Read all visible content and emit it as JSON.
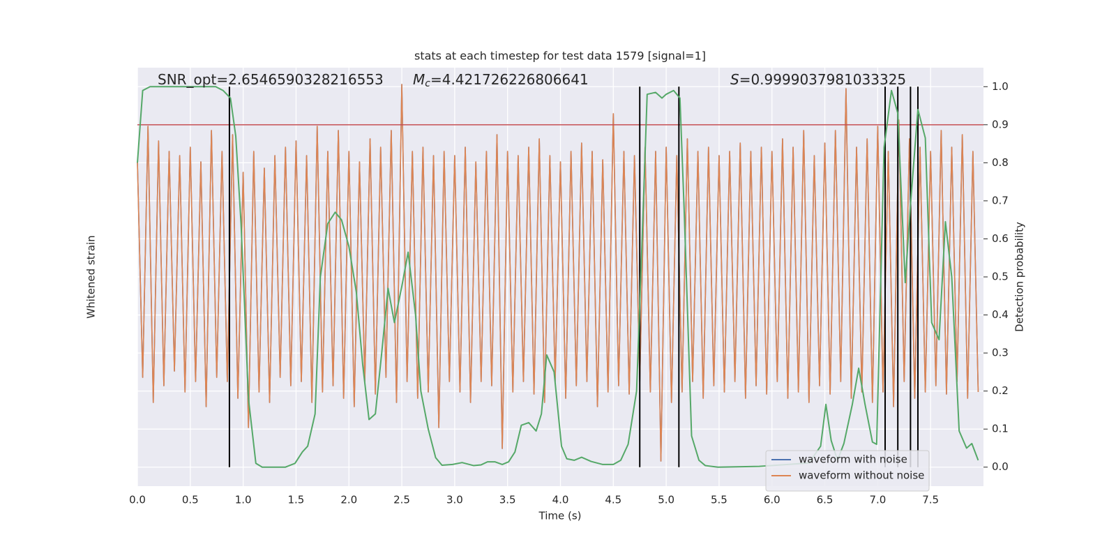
{
  "chart_data": {
    "type": "line",
    "title": "stats at each timestep for test data 1579 [signal=1]",
    "xlabel": "Time (s)",
    "ylabel": "Whitened strain",
    "y2label": "Detection probability",
    "annotations": [
      {
        "text": "SNR_opt=2.6546590328216553"
      },
      {
        "symbol": "M",
        "subscript": "c",
        "text": "=4.421726226806641"
      },
      {
        "symbol": "S",
        "text": "=0.9999037981033325"
      }
    ],
    "xlim": [
      0,
      8
    ],
    "xticks": [
      {
        "value": 0,
        "label": "0.0"
      },
      0.5,
      {
        "value": 1,
        "label": "1.0"
      },
      1.5,
      {
        "value": 2,
        "label": "2.0"
      },
      2.5,
      {
        "value": 3,
        "label": "3.0"
      },
      3.5,
      {
        "value": 4,
        "label": "4.0"
      },
      4.5,
      {
        "value": 5,
        "label": "5.0"
      },
      5.5,
      {
        "value": 6,
        "label": "6.0"
      },
      6.5,
      {
        "value": 7,
        "label": "7.0"
      },
      7.5
    ],
    "ylim": [
      -1,
      1
    ],
    "y2lim": [
      -0.05,
      1.05
    ],
    "y2ticks": [
      {
        "value": 0,
        "label": "0.0"
      },
      0.1,
      0.2,
      0.3,
      0.4,
      0.5,
      0.6,
      0.7,
      0.8,
      0.9,
      {
        "value": 1,
        "label": "1.0"
      }
    ],
    "grid": true,
    "legend": "lower right",
    "threshold": 0.9,
    "threshold_color": "#c44e52",
    "detections": [
      0.87,
      4.75,
      5.12,
      7.07,
      7.19,
      7.31,
      7.38
    ],
    "detection_color": "#000000",
    "series": [
      {
        "name": "waveform with noise",
        "color": "#4c72b0",
        "legend": true,
        "x": [
          0,
          0.05,
          0.1,
          0.15,
          0.2,
          0.25,
          0.3,
          0.35,
          0.4,
          0.45,
          0.5,
          0.55,
          0.6,
          0.65,
          0.7,
          0.75,
          0.8,
          0.85,
          0.9,
          0.95,
          1,
          1.05,
          1.1,
          1.15,
          1.2,
          1.25,
          1.3,
          1.35,
          1.4,
          1.45,
          1.5,
          1.55,
          1.6,
          1.65,
          1.7,
          1.75,
          1.8,
          1.85,
          1.9,
          1.95,
          2,
          2.05,
          2.1,
          2.15,
          2.2,
          2.25,
          2.3,
          2.35,
          2.4,
          2.45,
          2.5,
          2.55,
          2.6,
          2.65,
          2.7,
          2.75,
          2.8,
          2.85,
          2.9,
          2.95,
          3,
          3.05,
          3.1,
          3.15,
          3.2,
          3.25,
          3.3,
          3.35,
          3.4,
          3.45,
          3.5,
          3.55,
          3.6,
          3.65,
          3.7,
          3.75,
          3.8,
          3.85,
          3.9,
          3.95,
          4,
          4.05,
          4.1,
          4.15,
          4.2,
          4.25,
          4.3,
          4.35,
          4.4,
          4.45,
          4.5,
          4.55,
          4.6,
          4.65,
          4.7,
          4.75,
          4.8,
          4.85,
          4.9,
          4.95,
          5,
          5.05,
          5.1,
          5.15,
          5.2,
          5.25,
          5.3,
          5.35,
          5.4,
          5.45,
          5.5,
          5.55,
          5.6,
          5.65,
          5.7,
          5.75,
          5.8,
          5.85,
          5.9,
          5.95,
          6,
          6.05,
          6.1,
          6.15,
          6.2,
          6.25,
          6.3,
          6.35,
          6.4,
          6.45,
          6.5,
          6.55,
          6.6,
          6.65,
          6.7,
          6.75,
          6.8,
          6.85,
          6.9,
          6.95,
          7,
          7.05,
          7.1,
          7.15,
          7.2,
          7.25,
          7.3,
          7.35,
          7.4,
          7.45,
          7.5,
          7.55,
          7.6,
          7.65,
          7.7,
          7.75,
          7.8,
          7.85,
          7.9,
          7.95
        ],
        "values": [
          0.55,
          -0.48,
          0.72,
          -0.6,
          0.65,
          -0.52,
          0.6,
          -0.45,
          0.58,
          -0.55,
          0.62,
          -0.5,
          0.55,
          -0.62,
          0.7,
          -0.48,
          0.6,
          -0.5,
          0.68,
          -0.58,
          0.5,
          -0.72,
          0.6,
          -0.55,
          0.52,
          -0.6,
          0.58,
          -0.48,
          0.62,
          -0.52,
          0.65,
          -0.5,
          0.58,
          -0.6,
          0.72,
          -0.55,
          0.6,
          -0.52,
          0.7,
          -0.58,
          0.6,
          -0.62,
          0.55,
          -0.5,
          0.66,
          -0.56,
          0.62,
          -0.48,
          0.7,
          -0.6,
          0.92,
          -0.5,
          0.6,
          -0.58,
          0.62,
          -0.55,
          0.58,
          -0.72,
          0.6,
          -0.5,
          0.58,
          -0.55,
          0.62,
          -0.6,
          0.55,
          -0.5,
          0.6,
          -0.52,
          0.68,
          -0.82,
          0.6,
          -0.55,
          0.58,
          -0.5,
          0.62,
          -0.56,
          0.66,
          -0.6,
          0.58,
          -0.5,
          0.55,
          -0.58,
          0.6,
          -0.52,
          0.64,
          -0.5,
          0.6,
          -0.62,
          0.56,
          -0.55,
          0.78,
          -0.52,
          0.6,
          -0.56,
          0.58,
          -0.5,
          0.62,
          -0.55,
          0.6,
          -0.88,
          0.62,
          -0.6,
          0.58,
          -0.55,
          0.66,
          -0.5,
          0.6,
          -0.58,
          0.62,
          -0.52,
          0.58,
          -0.55,
          0.6,
          -0.5,
          0.64,
          -0.58,
          0.6,
          -0.52,
          0.62,
          -0.56,
          0.6,
          -0.5,
          0.66,
          -0.58,
          0.62,
          -0.55,
          0.7,
          -0.6,
          0.58,
          -0.52,
          0.64,
          -0.56,
          0.7,
          -0.5,
          0.9,
          -0.58,
          0.62,
          -0.55,
          0.66,
          -0.6,
          0.72,
          -0.55,
          0.6,
          -0.62,
          0.75,
          -0.5,
          0.66,
          -0.58,
          0.62,
          -0.55,
          0.6,
          -0.52,
          0.7,
          -0.56,
          0.62,
          -0.5,
          0.68,
          -0.58,
          0.6,
          -0.55
        ]
      },
      {
        "name": "waveform without noise",
        "color": "#dd8452",
        "legend": true,
        "x": [
          0,
          0.05,
          0.1,
          0.15,
          0.2,
          0.25,
          0.3,
          0.35,
          0.4,
          0.45,
          0.5,
          0.55,
          0.6,
          0.65,
          0.7,
          0.75,
          0.8,
          0.85,
          0.9,
          0.95,
          1,
          1.05,
          1.1,
          1.15,
          1.2,
          1.25,
          1.3,
          1.35,
          1.4,
          1.45,
          1.5,
          1.55,
          1.6,
          1.65,
          1.7,
          1.75,
          1.8,
          1.85,
          1.9,
          1.95,
          2,
          2.05,
          2.1,
          2.15,
          2.2,
          2.25,
          2.3,
          2.35,
          2.4,
          2.45,
          2.5,
          2.55,
          2.6,
          2.65,
          2.7,
          2.75,
          2.8,
          2.85,
          2.9,
          2.95,
          3,
          3.05,
          3.1,
          3.15,
          3.2,
          3.25,
          3.3,
          3.35,
          3.4,
          3.45,
          3.5,
          3.55,
          3.6,
          3.65,
          3.7,
          3.75,
          3.8,
          3.85,
          3.9,
          3.95,
          4,
          4.05,
          4.1,
          4.15,
          4.2,
          4.25,
          4.3,
          4.35,
          4.4,
          4.45,
          4.5,
          4.55,
          4.6,
          4.65,
          4.7,
          4.75,
          4.8,
          4.85,
          4.9,
          4.95,
          5,
          5.05,
          5.1,
          5.15,
          5.2,
          5.25,
          5.3,
          5.35,
          5.4,
          5.45,
          5.5,
          5.55,
          5.6,
          5.65,
          5.7,
          5.75,
          5.8,
          5.85,
          5.9,
          5.95,
          6,
          6.05,
          6.1,
          6.15,
          6.2,
          6.25,
          6.3,
          6.35,
          6.4,
          6.45,
          6.5,
          6.55,
          6.6,
          6.65,
          6.7,
          6.75,
          6.8,
          6.85,
          6.9,
          6.95,
          7,
          7.05,
          7.1,
          7.15,
          7.2,
          7.25,
          7.3,
          7.35,
          7.4,
          7.45,
          7.5,
          7.55,
          7.6,
          7.65,
          7.7,
          7.75,
          7.8,
          7.85,
          7.9,
          7.95
        ],
        "values": [
          0.55,
          -0.48,
          0.72,
          -0.6,
          0.65,
          -0.52,
          0.6,
          -0.45,
          0.58,
          -0.55,
          0.62,
          -0.5,
          0.55,
          -0.62,
          0.7,
          -0.48,
          0.6,
          -0.5,
          0.68,
          -0.58,
          0.5,
          -0.72,
          0.6,
          -0.55,
          0.52,
          -0.6,
          0.58,
          -0.48,
          0.62,
          -0.52,
          0.65,
          -0.5,
          0.58,
          -0.6,
          0.72,
          -0.55,
          0.6,
          -0.52,
          0.7,
          -0.58,
          0.6,
          -0.62,
          0.55,
          -0.5,
          0.66,
          -0.56,
          0.62,
          -0.48,
          0.7,
          -0.6,
          0.92,
          -0.5,
          0.6,
          -0.58,
          0.62,
          -0.55,
          0.58,
          -0.72,
          0.6,
          -0.5,
          0.58,
          -0.55,
          0.62,
          -0.6,
          0.55,
          -0.5,
          0.6,
          -0.52,
          0.68,
          -0.82,
          0.6,
          -0.55,
          0.58,
          -0.5,
          0.62,
          -0.56,
          0.66,
          -0.6,
          0.58,
          -0.5,
          0.55,
          -0.58,
          0.6,
          -0.52,
          0.64,
          -0.5,
          0.6,
          -0.62,
          0.56,
          -0.55,
          0.78,
          -0.52,
          0.6,
          -0.56,
          0.58,
          -0.5,
          0.62,
          -0.55,
          0.6,
          -0.88,
          0.62,
          -0.6,
          0.58,
          -0.55,
          0.66,
          -0.5,
          0.6,
          -0.58,
          0.62,
          -0.52,
          0.58,
          -0.55,
          0.6,
          -0.5,
          0.64,
          -0.58,
          0.6,
          -0.52,
          0.62,
          -0.56,
          0.6,
          -0.5,
          0.66,
          -0.58,
          0.62,
          -0.55,
          0.7,
          -0.6,
          0.58,
          -0.52,
          0.64,
          -0.56,
          0.7,
          -0.5,
          0.9,
          -0.58,
          0.62,
          -0.55,
          0.66,
          -0.6,
          0.72,
          -0.55,
          0.6,
          -0.62,
          0.75,
          -0.5,
          0.66,
          -0.58,
          0.62,
          -0.55,
          0.6,
          -0.52,
          0.7,
          -0.56,
          0.62,
          -0.5,
          0.68,
          -0.58,
          0.6,
          -0.55
        ]
      },
      {
        "color": "#55a868",
        "axis": "y2",
        "x": [
          0,
          0.05,
          0.12,
          0.74,
          0.81,
          0.88,
          0.93,
          0.98,
          1.05,
          1.12,
          1.18,
          1.4,
          1.49,
          1.56,
          1.61,
          1.68,
          1.73,
          1.8,
          1.87,
          1.93,
          2,
          2.07,
          2.13,
          2.19,
          2.25,
          2.31,
          2.37,
          2.43,
          2.5,
          2.56,
          2.63,
          2.68,
          2.75,
          2.82,
          2.88,
          2.98,
          3.07,
          3.18,
          3.25,
          3.31,
          3.38,
          3.45,
          3.51,
          3.57,
          3.63,
          3.7,
          3.77,
          3.82,
          3.87,
          3.94,
          4.01,
          4.06,
          4.13,
          4.2,
          4.29,
          4.4,
          4.5,
          4.57,
          4.64,
          4.72,
          4.77,
          4.82,
          4.9,
          4.96,
          5,
          5.07,
          5.13,
          5.17,
          5.24,
          5.31,
          5.37,
          5.49,
          5.88,
          6.15,
          6.35,
          6.46,
          6.51,
          6.56,
          6.62,
          6.68,
          6.76,
          6.82,
          6.88,
          6.95,
          6.99,
          7.06,
          7.13,
          7.19,
          7.26,
          7.31,
          7.38,
          7.45,
          7.51,
          7.58,
          7.64,
          7.7,
          7.77,
          7.84,
          7.89,
          7.95
        ],
        "values": [
          0.8,
          0.99,
          1,
          1,
          0.99,
          0.97,
          0.87,
          0.64,
          0.18,
          0.01,
          0,
          0,
          0.01,
          0.04,
          0.055,
          0.14,
          0.5,
          0.64,
          0.67,
          0.65,
          0.58,
          0.46,
          0.27,
          0.125,
          0.14,
          0.3,
          0.47,
          0.38,
          0.475,
          0.565,
          0.4,
          0.2,
          0.1,
          0.025,
          0.005,
          0.007,
          0.012,
          0.004,
          0.006,
          0.014,
          0.014,
          0.007,
          0.014,
          0.04,
          0.11,
          0.117,
          0.095,
          0.14,
          0.295,
          0.25,
          0.055,
          0.022,
          0.018,
          0.026,
          0.015,
          0.007,
          0.007,
          0.018,
          0.06,
          0.2,
          0.58,
          0.98,
          0.985,
          0.97,
          0.98,
          0.99,
          0.97,
          0.675,
          0.082,
          0.018,
          0.004,
          0,
          0.002,
          0.007,
          0.011,
          0.055,
          0.165,
          0.07,
          0.018,
          0.062,
          0.165,
          0.26,
          0.165,
          0.066,
          0.06,
          0.84,
          0.99,
          0.93,
          0.485,
          0.69,
          0.94,
          0.865,
          0.38,
          0.335,
          0.645,
          0.5,
          0.095,
          0.05,
          0.062,
          0.018
        ]
      }
    ]
  }
}
